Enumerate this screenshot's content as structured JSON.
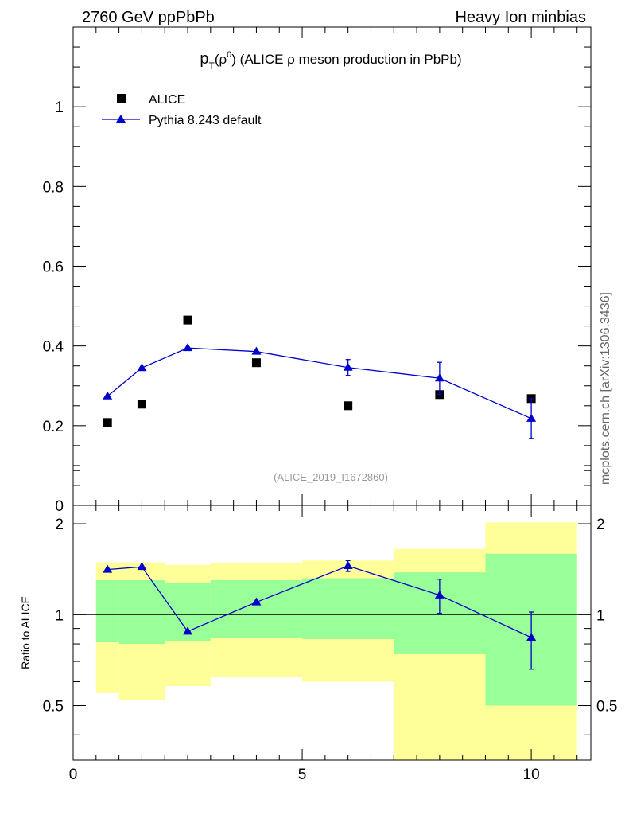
{
  "header": {
    "left_title": "2760 GeV ppPbPb",
    "right_title": "Heavy Ion minbias"
  },
  "side_label": "mcplots.cern.ch [arXiv:1306.3436]",
  "chart_data": [
    {
      "type": "scatter",
      "title_parts": {
        "main": "p",
        "sub": "T",
        "open": "(ρ",
        "sup": "0",
        "rest": ") (ALICE ρ meson production in PbPb)"
      },
      "annotation": "(ALICE_2019_I1672860)",
      "xlim": [
        0,
        11.3
      ],
      "ylim": [
        0,
        1.2
      ],
      "y_ticks": [
        "0",
        "0.2",
        "0.4",
        "0.6",
        "0.8",
        "1"
      ],
      "series": [
        {
          "name": "ALICE",
          "marker": "square",
          "color": "#000000",
          "x": [
            0.75,
            1.5,
            2.5,
            4,
            6,
            8,
            10
          ],
          "y": [
            0.208,
            0.254,
            0.465,
            0.358,
            0.25,
            0.278,
            0.268
          ]
        },
        {
          "name": "Pythia 8.243 default",
          "marker": "triangle",
          "color": "#0000cc",
          "x": [
            0.75,
            1.5,
            2.5,
            4,
            6,
            8,
            10
          ],
          "y": [
            0.274,
            0.345,
            0.395,
            0.386,
            0.346,
            0.319,
            0.218
          ],
          "yerr": [
            0,
            0,
            0,
            0,
            0.02,
            0.04,
            0.05
          ]
        }
      ]
    },
    {
      "type": "scatter",
      "ylabel": "Ratio to ALICE",
      "xlim": [
        0,
        11.3
      ],
      "ylim": [
        0.33,
        2.3
      ],
      "x_ticks": [
        "0",
        "5",
        "10"
      ],
      "y_ticks": [
        "0.5",
        "1",
        "2"
      ],
      "bands": {
        "outer_color": "#ffff99",
        "inner_color": "#99ff99",
        "bins": [
          {
            "x0": 0.5,
            "x1": 1.0,
            "outer": [
              0.55,
              1.49
            ],
            "inner": [
              0.81,
              1.3
            ]
          },
          {
            "x0": 1.0,
            "x1": 2.0,
            "outer": [
              0.52,
              1.49
            ],
            "inner": [
              0.8,
              1.3
            ]
          },
          {
            "x0": 2.0,
            "x1": 3.0,
            "outer": [
              0.58,
              1.46
            ],
            "inner": [
              0.82,
              1.27
            ]
          },
          {
            "x0": 3.0,
            "x1": 5.0,
            "outer": [
              0.62,
              1.48
            ],
            "inner": [
              0.84,
              1.3
            ]
          },
          {
            "x0": 5.0,
            "x1": 7.0,
            "outer": [
              0.6,
              1.51
            ],
            "inner": [
              0.83,
              1.32
            ]
          },
          {
            "x0": 7.0,
            "x1": 9.0,
            "outer": [
              0.33,
              1.65
            ],
            "inner": [
              0.74,
              1.38
            ]
          },
          {
            "x0": 9.0,
            "x1": 11.0,
            "outer": [
              0.33,
              2.02
            ],
            "inner": [
              0.5,
              1.59
            ]
          }
        ]
      },
      "series": [
        {
          "name": "Pythia 8.243 default",
          "marker": "triangle",
          "color": "#0000cc",
          "x": [
            0.75,
            1.5,
            2.5,
            4,
            6,
            8,
            10
          ],
          "y": [
            1.41,
            1.44,
            0.88,
            1.1,
            1.45,
            1.16,
            0.84
          ],
          "yerr": [
            0,
            0,
            0,
            0,
            0.06,
            0.15,
            0.18
          ]
        }
      ]
    }
  ]
}
